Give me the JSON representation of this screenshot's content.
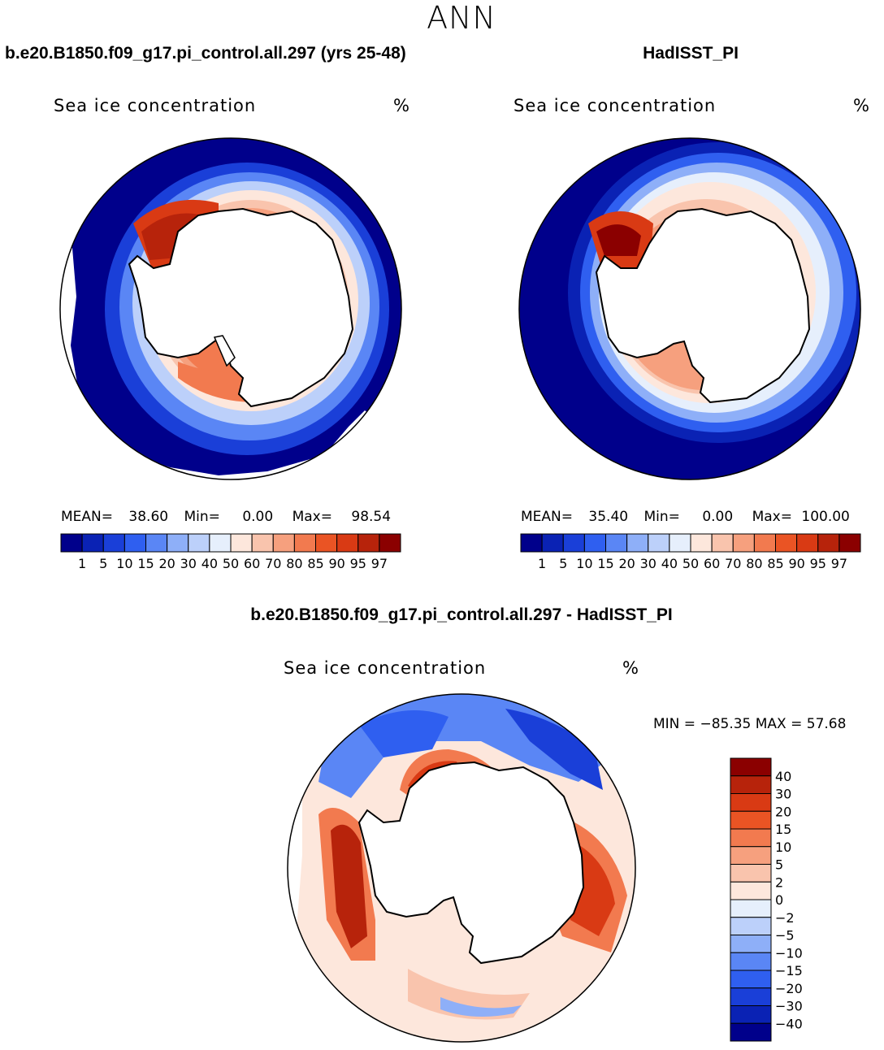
{
  "figure": {
    "season": "ANN",
    "panels": [
      {
        "case": "b.e20.B1850.f09_g17.pi_control.all.297 (yrs 25-48)",
        "variable": "Sea ice concentration",
        "units": "%",
        "stats": {
          "mean_label": "MEAN=",
          "mean": "38.60",
          "min_label": "Min=",
          "min": "0.00",
          "max_label": "Max=",
          "max": "98.54"
        }
      },
      {
        "case": "HadISST_PI",
        "variable": "Sea ice concentration",
        "units": "%",
        "stats": {
          "mean_label": "MEAN=",
          "mean": "35.40",
          "min_label": "Min=",
          "min": "0.00",
          "max_label": "Max=",
          "max": "100.00"
        }
      }
    ],
    "diff": {
      "title": "b.e20.B1850.f09_g17.pi_control.all.297 - HadISST_PI",
      "variable": "Sea ice concentration",
      "units": "%",
      "minmax_text": "MIN = −85.35 MAX =   57.68"
    }
  },
  "chart_data": [
    {
      "type": "heatmap",
      "projection": "south-polar-stereographic",
      "title": "Sea ice concentration",
      "case": "b.e20.B1850.f09_g17.pi_control.all.297 (yrs 25-48)",
      "units": "%",
      "mean": 38.6,
      "min": 0.0,
      "max": 98.54,
      "colorbar_levels": [
        1,
        5,
        10,
        15,
        20,
        30,
        40,
        50,
        60,
        70,
        80,
        85,
        90,
        95,
        97
      ],
      "colorbar_colors": [
        "#00008b",
        "#0a22b4",
        "#1a3fd8",
        "#2f5ff0",
        "#5a86f5",
        "#8eaff8",
        "#bcd0fa",
        "#e6effc",
        "#fde7dc",
        "#f9c4ad",
        "#f6a07e",
        "#f27a4f",
        "#ea5424",
        "#d93a14",
        "#b7230b",
        "#8b0000"
      ],
      "legend": "bottom"
    },
    {
      "type": "heatmap",
      "projection": "south-polar-stereographic",
      "title": "Sea ice concentration",
      "case": "HadISST_PI",
      "units": "%",
      "mean": 35.4,
      "min": 0.0,
      "max": 100.0,
      "colorbar_levels": [
        1,
        5,
        10,
        15,
        20,
        30,
        40,
        50,
        60,
        70,
        80,
        85,
        90,
        95,
        97
      ],
      "colorbar_colors": [
        "#00008b",
        "#0a22b4",
        "#1a3fd8",
        "#2f5ff0",
        "#5a86f5",
        "#8eaff8",
        "#bcd0fa",
        "#e6effc",
        "#fde7dc",
        "#f9c4ad",
        "#f6a07e",
        "#f27a4f",
        "#ea5424",
        "#d93a14",
        "#b7230b",
        "#8b0000"
      ],
      "legend": "bottom"
    },
    {
      "type": "heatmap",
      "projection": "south-polar-stereographic",
      "title": "Sea ice concentration",
      "case": "b.e20.B1850.f09_g17.pi_control.all.297 - HadISST_PI",
      "units": "%",
      "min": -85.35,
      "max": 57.68,
      "colorbar_levels": [
        40,
        30,
        20,
        15,
        10,
        5,
        2,
        0,
        -2,
        -5,
        -10,
        -15,
        -20,
        -30,
        -40
      ],
      "colorbar_level_labels": [
        "40",
        "30",
        "20",
        "15",
        "10",
        "5",
        "2",
        "0",
        "−2",
        "−5",
        "−10",
        "−15",
        "−20",
        "−30",
        "−40"
      ],
      "colorbar_colors": [
        "#8b0000",
        "#b7230b",
        "#d93a14",
        "#ea5424",
        "#f27a4f",
        "#f6a07e",
        "#f9c4ad",
        "#fde7dc",
        "#e6effc",
        "#bcd0fa",
        "#8eaff8",
        "#5a86f5",
        "#2f5ff0",
        "#1a3fd8",
        "#0a22b4",
        "#00008b"
      ],
      "legend": "right"
    }
  ]
}
